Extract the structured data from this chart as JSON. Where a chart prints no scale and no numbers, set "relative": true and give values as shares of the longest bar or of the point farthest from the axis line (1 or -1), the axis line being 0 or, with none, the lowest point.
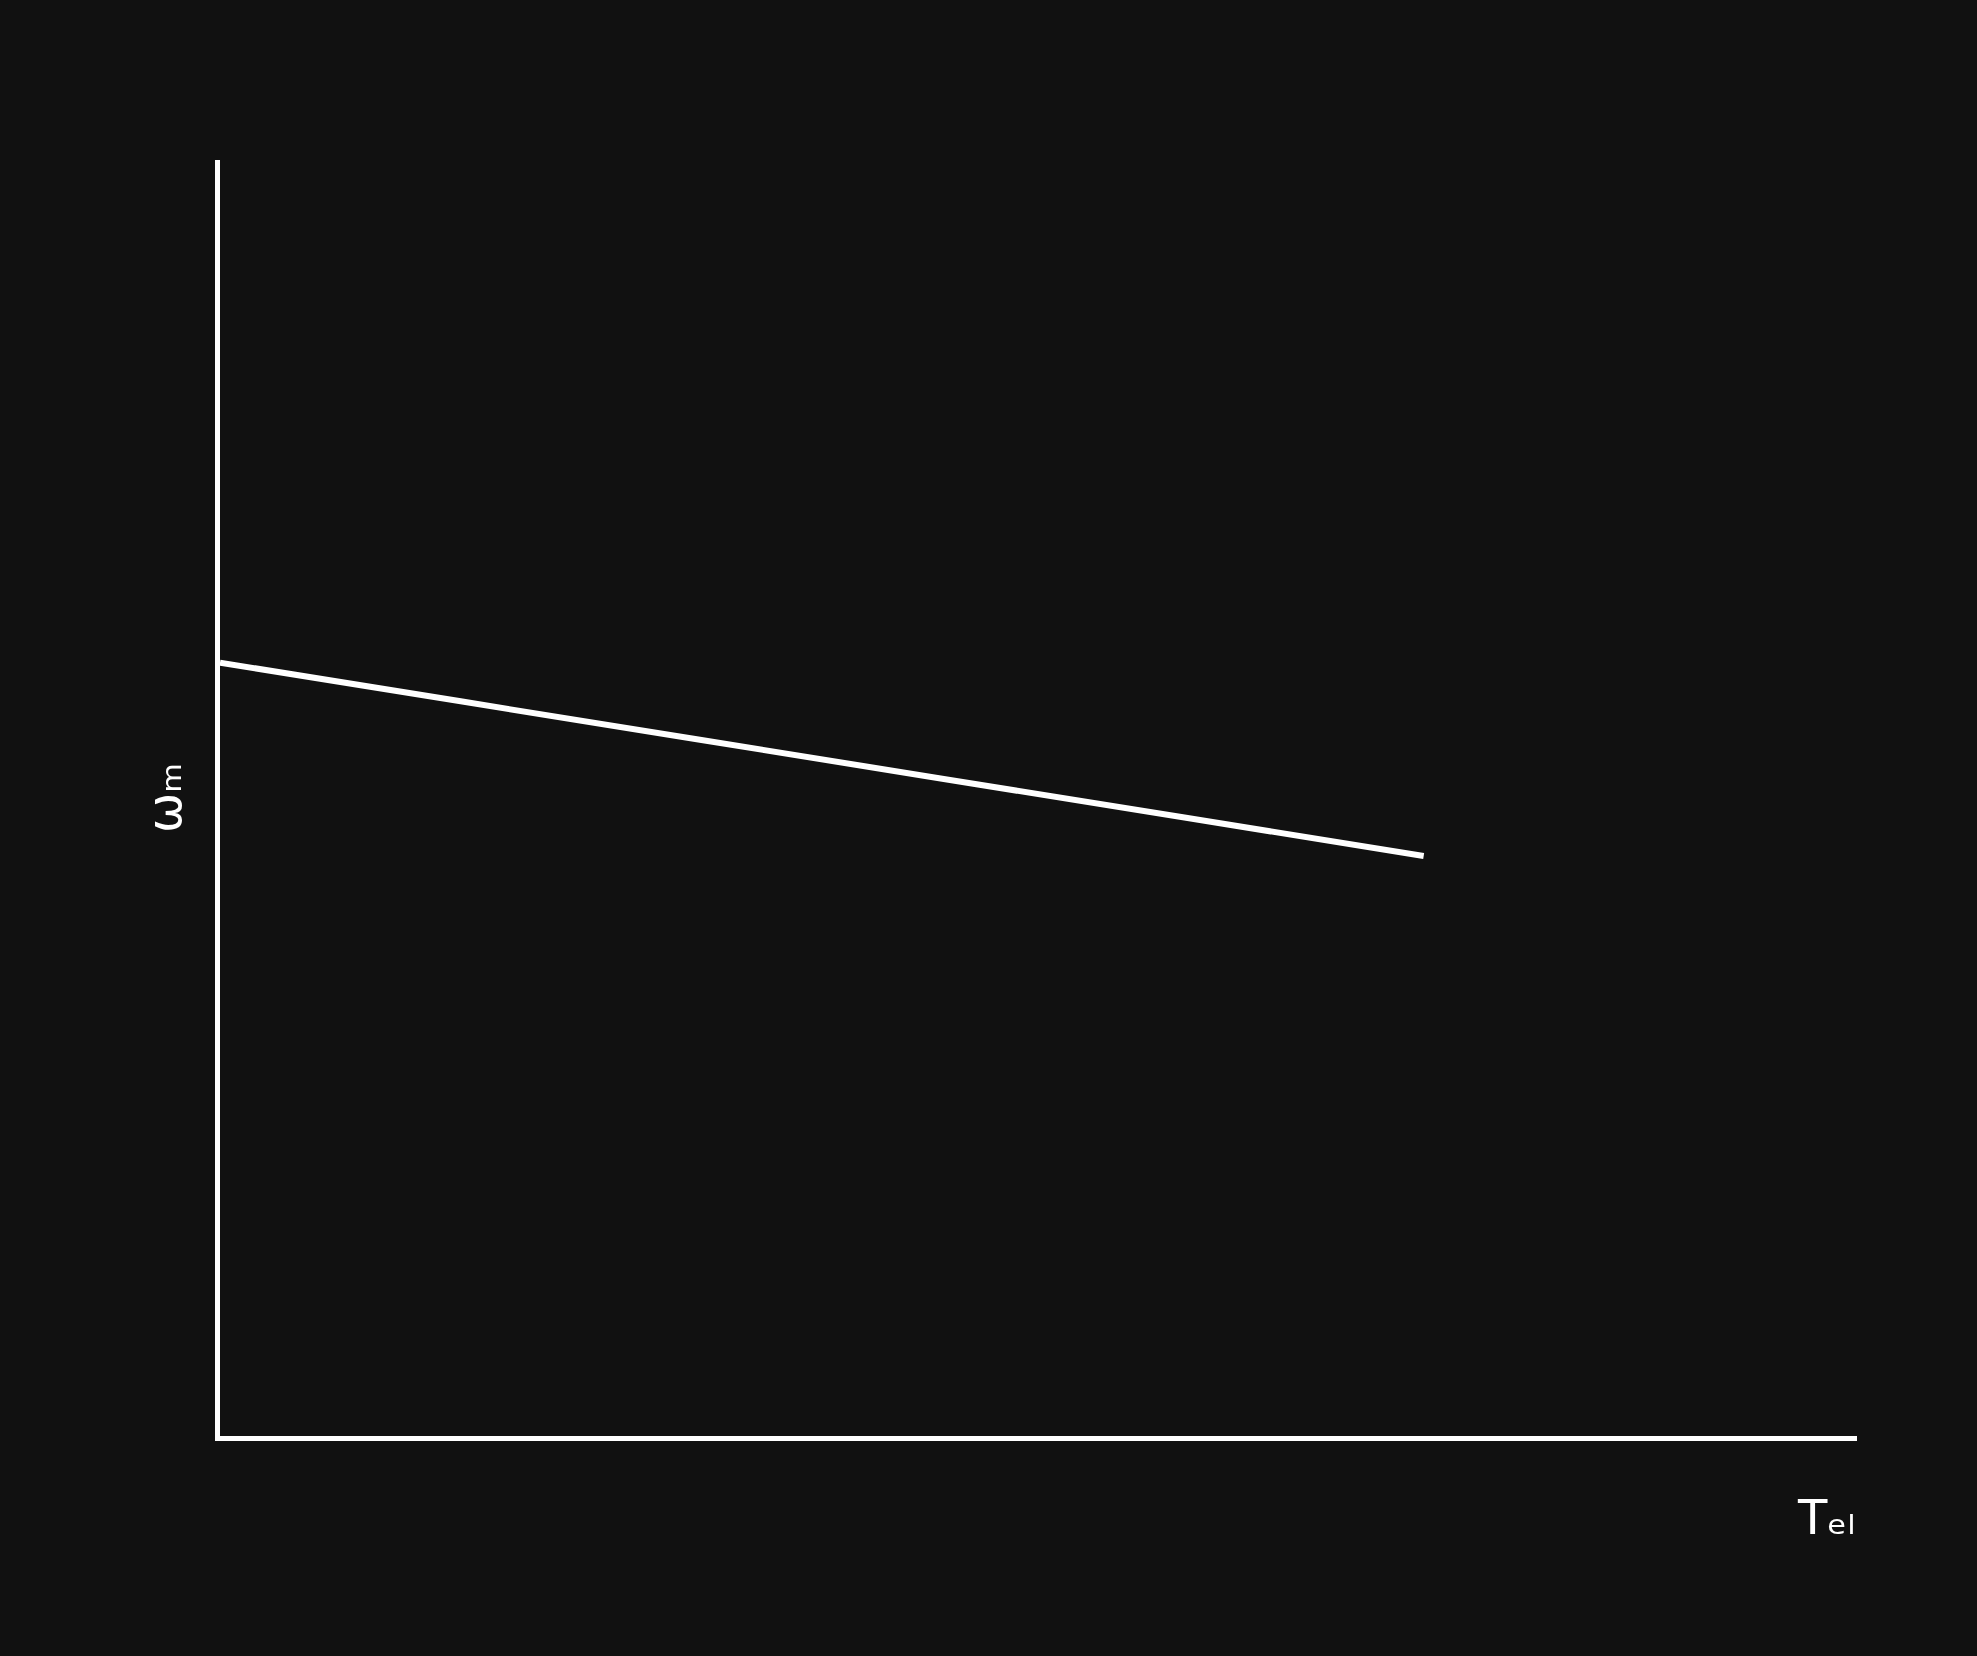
{
  "chart_data": {
    "type": "line",
    "xlabel": "Tₑₗ",
    "ylabel": "ωₘ",
    "relative": true,
    "categories": [
      null,
      null,
      null,
      null,
      null,
      null,
      null
    ],
    "series": [
      {
        "color": "#ffffff",
        "values": [
          1,
          0.95,
          0.9,
          0.85,
          0.8,
          0.75,
          null
        ]
      }
    ],
    "grid": false,
    "legend": false,
    "marker": "none",
    "line_style": "solid"
  }
}
